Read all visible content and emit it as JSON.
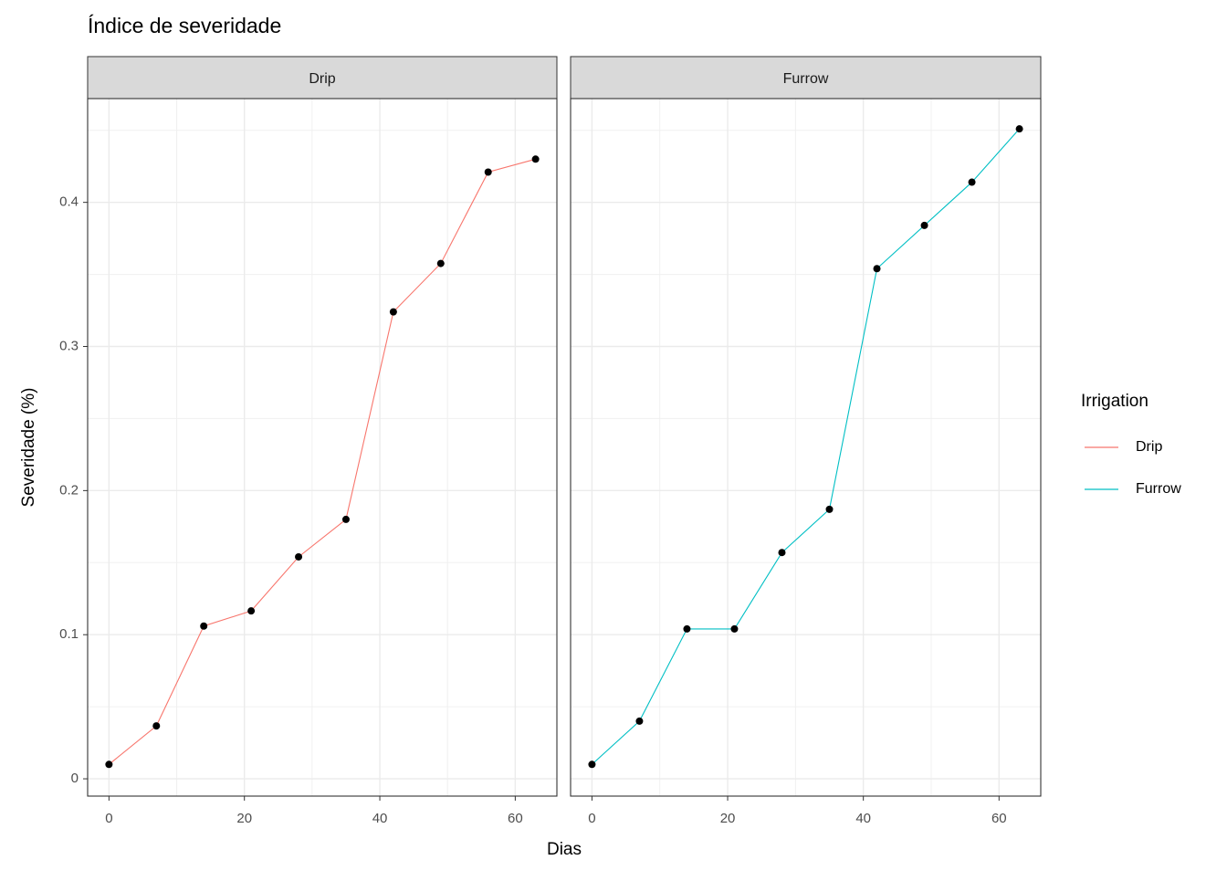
{
  "chart_data": {
    "type": "line",
    "title": "Índice de severidade",
    "xlabel": "Dias",
    "ylabel": "Severidade (%)",
    "legend_title": "Irrigation",
    "facet": true,
    "grid": true,
    "x": [
      0,
      7,
      14,
      21,
      28,
      35,
      42,
      49,
      56,
      63
    ],
    "series": [
      {
        "name": "Drip",
        "color": "#F8766D",
        "values": [
          0.01,
          0.0367,
          0.106,
          0.1165,
          0.154,
          0.18,
          0.324,
          0.3576,
          0.421,
          0.43
        ]
      },
      {
        "name": "Furrow",
        "color": "#00BFC4",
        "values": [
          0.01,
          0.04,
          0.104,
          0.104,
          0.157,
          0.187,
          0.354,
          0.384,
          0.414,
          0.451
        ]
      }
    ],
    "point_color": "#000000",
    "xlim": [
      -3.15,
      66.15
    ],
    "xticks": [
      0,
      20,
      40,
      60
    ],
    "ylim": [
      -0.012,
      0.472
    ],
    "yticks": [
      0.0,
      0.1,
      0.2,
      0.3,
      0.4
    ]
  }
}
